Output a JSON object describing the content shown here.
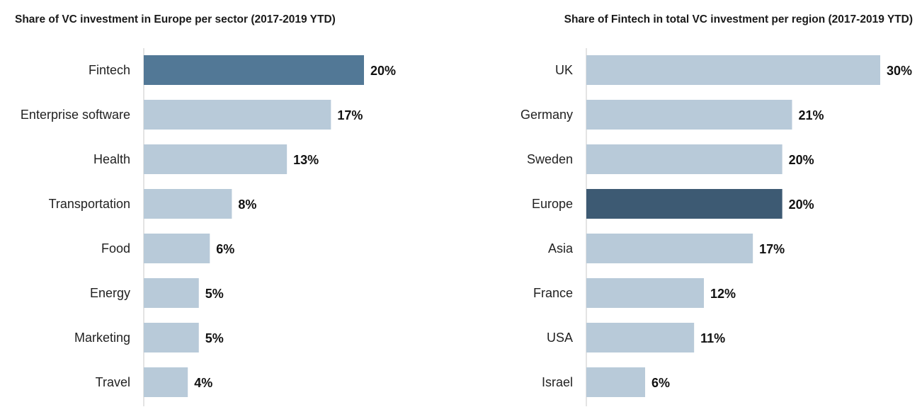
{
  "chart_data": [
    {
      "type": "bar",
      "orientation": "horizontal",
      "title": "Share of VC investment in Europe per sector (2017-2019 YTD)",
      "categories": [
        "Fintech",
        "Enterprise software",
        "Health",
        "Transportation",
        "Food",
        "Energy",
        "Marketing",
        "Travel"
      ],
      "values": [
        20,
        17,
        13,
        8,
        6,
        5,
        5,
        4
      ],
      "value_labels": [
        "20%",
        "17%",
        "13%",
        "8%",
        "6%",
        "5%",
        "5%",
        "4%"
      ],
      "unit": "%",
      "highlight": "Fintech",
      "bar_color": "#b8cad9",
      "highlight_color": "#527896",
      "xlim": [
        0,
        20
      ]
    },
    {
      "type": "bar",
      "orientation": "horizontal",
      "title": "Share of Fintech in total VC investment per region (2017-2019 YTD)",
      "categories": [
        "UK",
        "Germany",
        "Sweden",
        "Europe",
        "Asia",
        "France",
        "USA",
        "Israel"
      ],
      "values": [
        30,
        21,
        20,
        20,
        17,
        12,
        11,
        6
      ],
      "value_labels": [
        "30%",
        "21%",
        "20%",
        "20%",
        "17%",
        "12%",
        "11%",
        "6%"
      ],
      "unit": "%",
      "highlight": "Europe",
      "bar_color": "#b8cad9",
      "highlight_color": "#3d5a73",
      "xlim": [
        0,
        30
      ]
    }
  ]
}
